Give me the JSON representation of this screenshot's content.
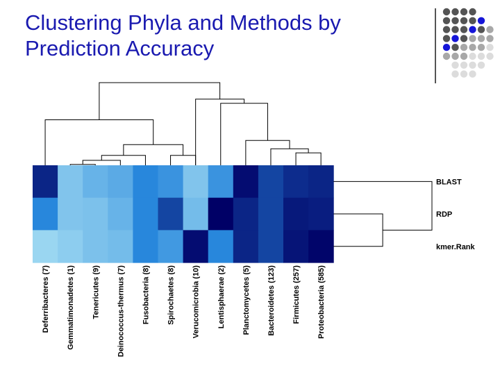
{
  "slide": {
    "title_line1": "Clustering Phyla and Methods by",
    "title_line2": "Prediction Accuracy"
  },
  "colors": {
    "title": "#1a1ab0",
    "dot_dark": "#545454",
    "dot_blue": "#1515d8",
    "dot_mid": "#a8a8a8",
    "dot_light": "#dcdcdc"
  },
  "decoration": {
    "dot_pattern": [
      [
        "dark",
        "dark",
        "dark",
        "dark",
        "",
        ""
      ],
      [
        "dark",
        "dark",
        "dark",
        "dark",
        "blue",
        ""
      ],
      [
        "dark",
        "dark",
        "dark",
        "blue",
        "dark",
        "mid"
      ],
      [
        "dark",
        "blue",
        "dark",
        "mid",
        "mid",
        "mid"
      ],
      [
        "blue",
        "dark",
        "mid",
        "mid",
        "mid",
        "light"
      ],
      [
        "mid",
        "mid",
        "mid",
        "light",
        "light",
        "light"
      ],
      [
        "",
        "light",
        "light",
        "light",
        "light",
        ""
      ],
      [
        "",
        "light",
        "light",
        "light",
        "",
        ""
      ]
    ]
  },
  "chart_data": {
    "type": "heatmap",
    "title": "Clustering Phyla and Methods by Prediction Accuracy",
    "columns": [
      "Deferribacteres (7)",
      "Gemmatimonadetes (1)",
      "Tenericutes (9)",
      "Deinococcus-thermus (7)",
      "Fusobacteria (8)",
      "Spirochaetes (8)",
      "Verucomicrobia (10)",
      "Lentisphaerae (2)",
      "Planctomycetes (5)",
      "Bacteroidetes (123)",
      "Firmicutes (257)",
      "Proteobacteria (585)"
    ],
    "rows": [
      "BLAST",
      "RDP",
      "kmer.Rank"
    ],
    "color_scale": {
      "low": "#9ad6f1",
      "high": "#000066",
      "min": 0,
      "max": 1
    },
    "values": [
      [
        0.85,
        0.1,
        0.2,
        0.25,
        0.45,
        0.38,
        0.1,
        0.38,
        0.95,
        0.72,
        0.82,
        0.85
      ],
      [
        0.45,
        0.1,
        0.12,
        0.2,
        0.45,
        0.72,
        0.15,
        1.0,
        0.85,
        0.72,
        0.9,
        0.88
      ],
      [
        0.0,
        0.05,
        0.12,
        0.15,
        0.45,
        0.35,
        0.95,
        0.45,
        0.85,
        0.72,
        0.92,
        0.98
      ]
    ],
    "column_dendrogram": [
      {
        "left": 1,
        "right": 2,
        "height": 0.01
      },
      {
        "left": 12,
        "right": 3,
        "height": 0.06
      },
      {
        "left": 13,
        "right": 4,
        "height": 0.12
      },
      {
        "left": 5,
        "right": 6,
        "height": 0.12
      },
      {
        "left": 14,
        "right": 15,
        "height": 0.25
      },
      {
        "left": 0,
        "right": 16,
        "height": 0.55
      },
      {
        "left": 10,
        "right": 11,
        "height": 0.15
      },
      {
        "left": 9,
        "right": 18,
        "height": 0.2
      },
      {
        "left": 8,
        "right": 19,
        "height": 0.3
      },
      {
        "left": 7,
        "right": 20,
        "height": 0.75
      },
      {
        "left": 6,
        "right": 21,
        "height": 0.8
      },
      {
        "left": 17,
        "right": 22,
        "height": 1.0
      }
    ],
    "row_dendrogram": [
      {
        "left": 1,
        "right": 2,
        "height": 0.5
      },
      {
        "left": 0,
        "right": 3,
        "height": 1.0
      }
    ]
  }
}
